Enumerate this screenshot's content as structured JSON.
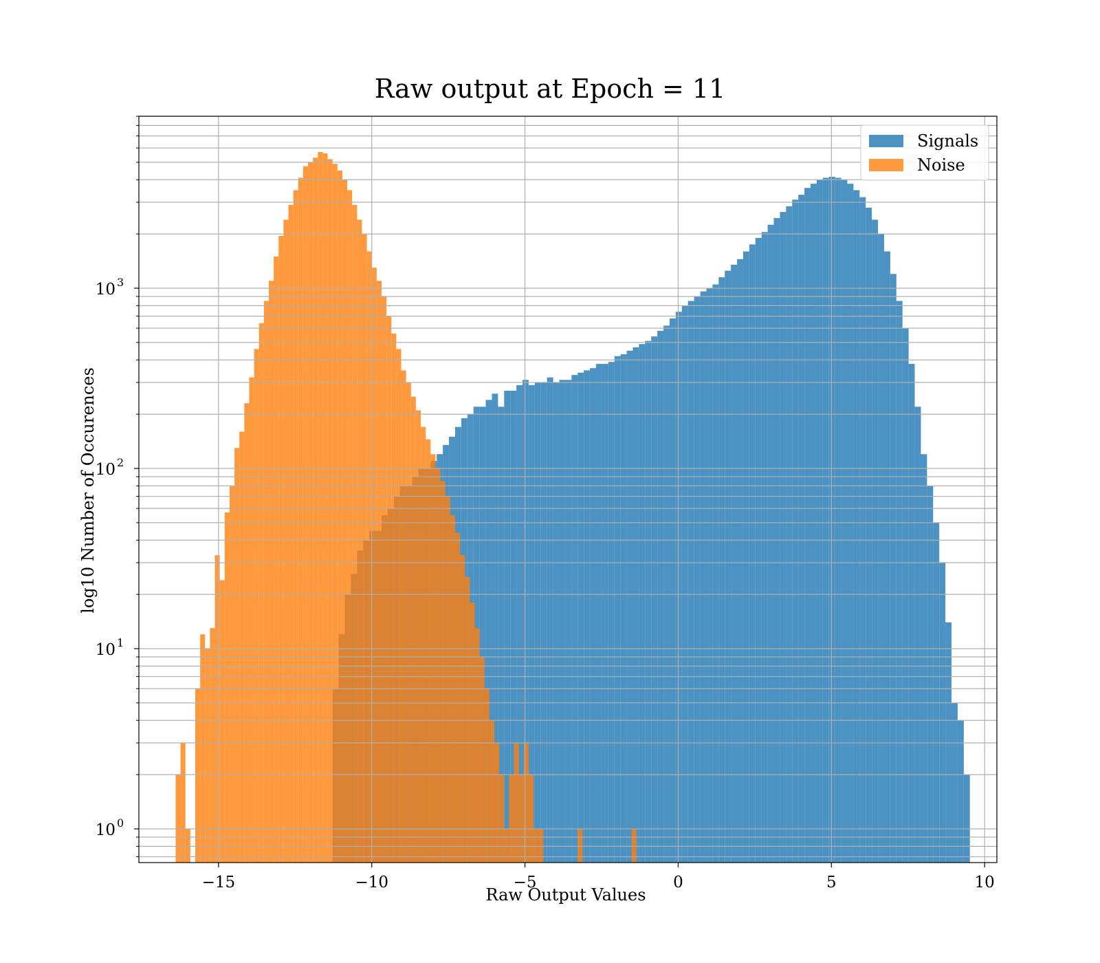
{
  "chart_data": {
    "type": "histogram",
    "title": "Raw output at Epoch = 11",
    "xlabel": "Raw Output Values",
    "ylabel": "log10 Number of Occurences",
    "xlim": [
      -17.6,
      10.4
    ],
    "ylim": [
      0.65,
      9000
    ],
    "yscale": "log",
    "grid": true,
    "legend_position": "top-right",
    "xticks": [
      {
        "value": -15,
        "label": "−15"
      },
      {
        "value": -10,
        "label": "−10"
      },
      {
        "value": -5,
        "label": "−5"
      },
      {
        "value": 0,
        "label": "0"
      },
      {
        "value": 5,
        "label": "5"
      },
      {
        "value": 10,
        "label": "10"
      }
    ],
    "yticks": [
      {
        "value": 1,
        "base": "10",
        "exp": "0"
      },
      {
        "value": 10,
        "base": "10",
        "exp": "1"
      },
      {
        "value": 100,
        "base": "10",
        "exp": "2"
      },
      {
        "value": 1000,
        "base": "10",
        "exp": "3"
      }
    ],
    "series": [
      {
        "name": "Signals",
        "color": "#1f77b4",
        "alpha": 0.8,
        "bin_start": -11.28,
        "bin_width": 0.2,
        "counts": [
          6,
          12,
          20,
          26,
          35,
          40,
          45,
          45,
          55,
          60,
          70,
          80,
          80,
          90,
          100,
          100,
          110,
          120,
          135,
          150,
          170,
          190,
          200,
          220,
          220,
          240,
          260,
          220,
          270,
          270,
          290,
          310,
          290,
          300,
          300,
          320,
          300,
          310,
          310,
          330,
          340,
          350,
          360,
          380,
          380,
          390,
          420,
          430,
          450,
          470,
          490,
          510,
          540,
          580,
          620,
          680,
          740,
          800,
          850,
          900,
          960,
          1000,
          1050,
          1150,
          1250,
          1350,
          1450,
          1600,
          1750,
          1900,
          2050,
          2250,
          2450,
          2650,
          2850,
          3100,
          3300,
          3600,
          3800,
          4000,
          4100,
          4150,
          4100,
          4000,
          3800,
          3500,
          3200,
          2800,
          2400,
          2000,
          1600,
          1200,
          850,
          600,
          380,
          220,
          120,
          80,
          50,
          30,
          14,
          5,
          4,
          2
        ]
      },
      {
        "name": "Noise",
        "color": "#ff7f0e",
        "alpha": 0.8,
        "bin_start": -16.4,
        "bin_width": 0.16,
        "counts": [
          2,
          3,
          1,
          0,
          6,
          12,
          10,
          13,
          33,
          24,
          57,
          80,
          130,
          160,
          230,
          320,
          460,
          640,
          850,
          1100,
          1500,
          1950,
          2400,
          2900,
          3500,
          4100,
          4750,
          5000,
          5300,
          5700,
          5600,
          5200,
          4900,
          4500,
          4000,
          3500,
          2900,
          2400,
          2000,
          1600,
          1300,
          1100,
          900,
          700,
          560,
          460,
          350,
          300,
          250,
          210,
          170,
          145,
          120,
          100,
          85,
          70,
          55,
          44,
          33,
          25,
          18,
          13,
          9,
          6,
          4,
          3,
          2,
          1,
          2,
          3,
          2,
          3,
          2,
          1,
          1,
          0,
          0,
          0,
          0,
          0,
          0,
          0,
          1,
          0,
          0,
          0,
          0,
          0,
          0,
          0,
          0,
          0,
          0,
          1,
          0
        ]
      }
    ]
  }
}
